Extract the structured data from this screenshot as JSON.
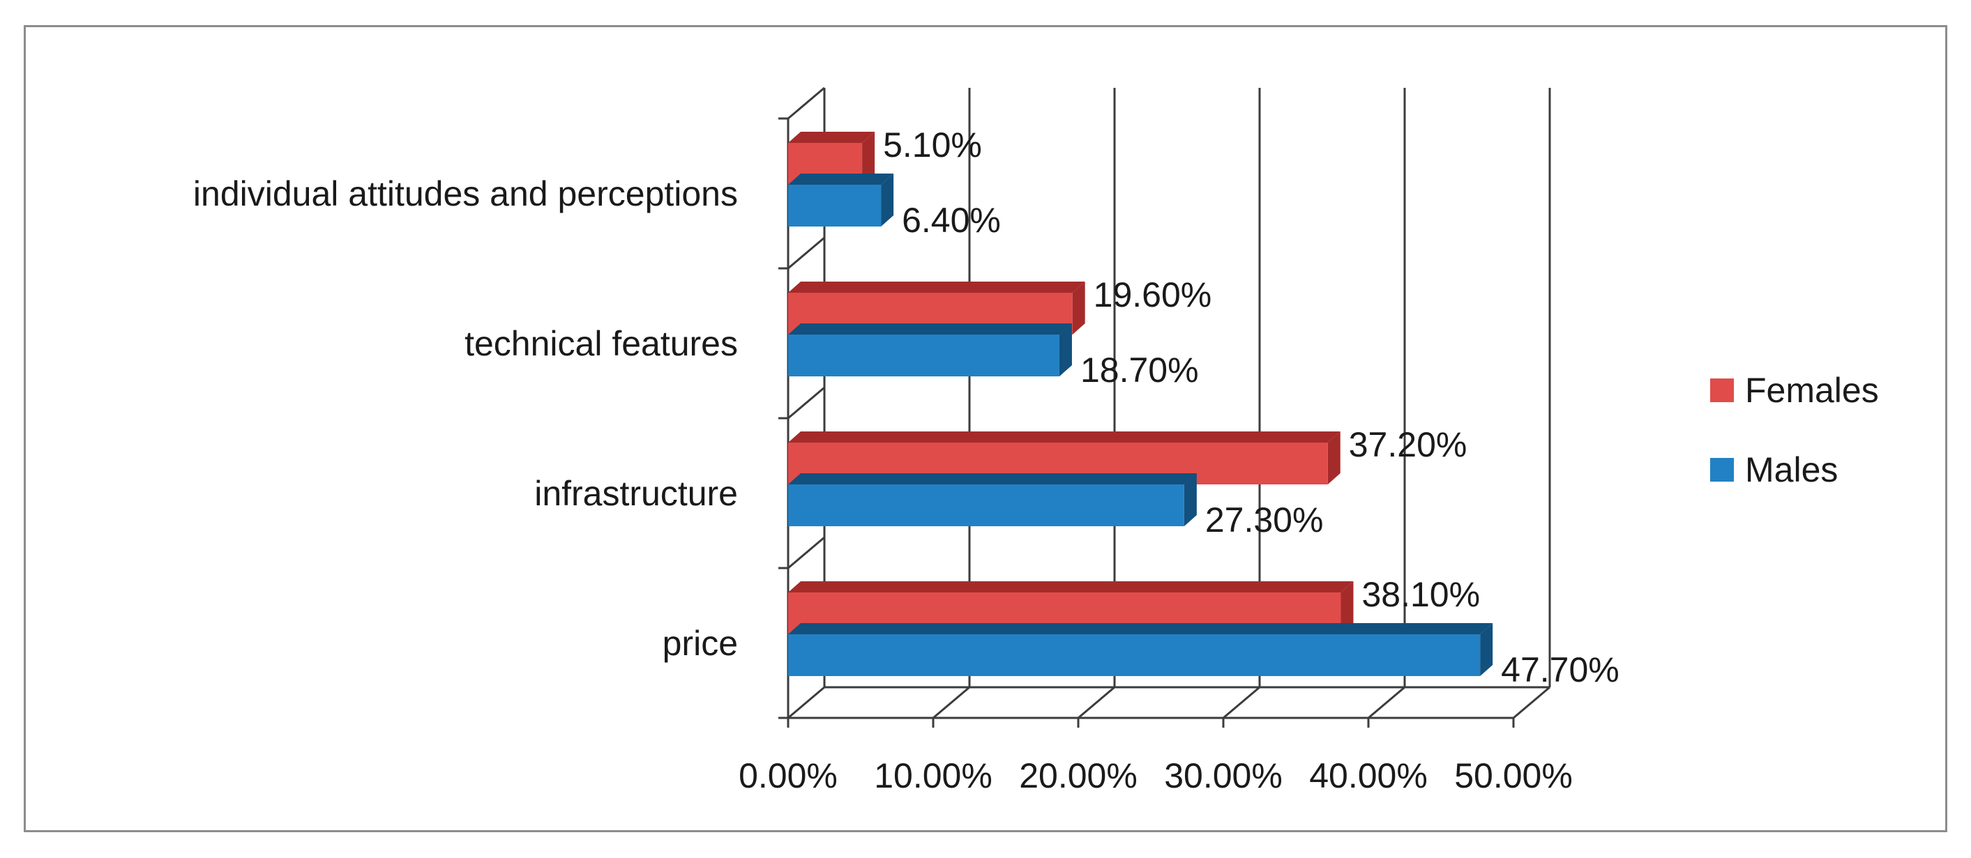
{
  "chart_data": {
    "type": "bar",
    "orientation": "horizontal",
    "style": "3d",
    "categories": [
      "price",
      "infrastructure",
      "technical features",
      "individual attitudes and perceptions"
    ],
    "series": [
      {
        "name": "Females",
        "color": "#e04c4a",
        "color_dark": "#a52b2a",
        "values": [
          38.1,
          37.2,
          19.6,
          5.1
        ],
        "labels": [
          "38.10%",
          "37.20%",
          "19.60%",
          "5.10%"
        ]
      },
      {
        "name": "Males",
        "color": "#2281c4",
        "color_dark": "#12507e",
        "values": [
          47.7,
          27.3,
          18.7,
          6.4
        ],
        "labels": [
          "47.70%",
          "27.30%",
          "18.70%",
          "6.40%"
        ]
      }
    ],
    "xlim": [
      0,
      50
    ],
    "xticks": [
      "0.00%",
      "10.00%",
      "20.00%",
      "30.00%",
      "40.00%",
      "50.00%"
    ],
    "grid": true,
    "legend": "right",
    "title": "",
    "xlabel": "",
    "ylabel": ""
  }
}
